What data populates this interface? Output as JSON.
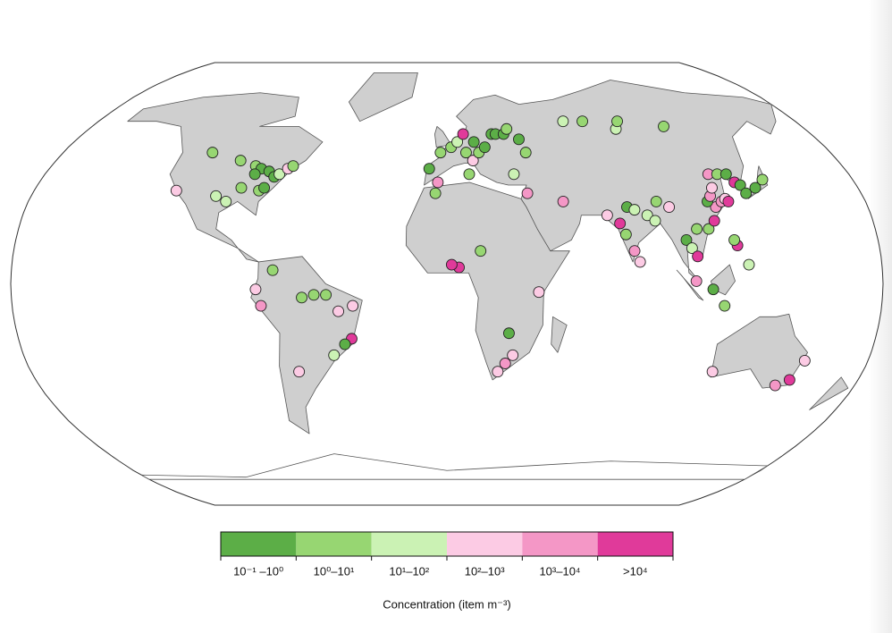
{
  "chart_data": {
    "type": "map",
    "legend": {
      "title": "Concentration (item m⁻³)",
      "bins": [
        {
          "label": "10⁻¹ –10⁰",
          "color": "#5cae47"
        },
        {
          "label": "10⁰–10¹",
          "color": "#97d672"
        },
        {
          "label": "10¹–10²",
          "color": "#cbf2b4"
        },
        {
          "label": "10²–10³",
          "color": "#fccbe4"
        },
        {
          "label": "10³–10⁴",
          "color": "#f497c6"
        },
        {
          "label": ">10⁴",
          "color": "#e03a9a"
        }
      ]
    },
    "points": [
      {
        "lon": -95,
        "lat": 45,
        "class": 1
      },
      {
        "lon": -87,
        "lat": 43,
        "class": 1
      },
      {
        "lon": -84,
        "lat": 42,
        "class": 0
      },
      {
        "lon": -80,
        "lat": 41,
        "class": 0
      },
      {
        "lon": -77,
        "lat": 39,
        "class": 0
      },
      {
        "lon": -75,
        "lat": 40,
        "class": 2
      },
      {
        "lon": -72,
        "lat": 42,
        "class": 3
      },
      {
        "lon": -70,
        "lat": 43,
        "class": 1
      },
      {
        "lon": -90,
        "lat": 35,
        "class": 1
      },
      {
        "lon": -95,
        "lat": 30,
        "class": 2
      },
      {
        "lon": -100,
        "lat": 32,
        "class": 2
      },
      {
        "lon": -82,
        "lat": 34,
        "class": 1
      },
      {
        "lon": -118,
        "lat": 34,
        "class": 3
      },
      {
        "lon": -110,
        "lat": 48,
        "class": 1
      },
      {
        "lon": -86,
        "lat": 40,
        "class": 0
      },
      {
        "lon": -80,
        "lat": 35,
        "class": 0
      },
      {
        "lon": -79,
        "lat": -2,
        "class": 3
      },
      {
        "lon": -77,
        "lat": -8,
        "class": 4
      },
      {
        "lon": -60,
        "lat": -5,
        "class": 1
      },
      {
        "lon": -55,
        "lat": -4,
        "class": 1
      },
      {
        "lon": -50,
        "lat": -4,
        "class": 1
      },
      {
        "lon": -45,
        "lat": -10,
        "class": 3
      },
      {
        "lon": -39,
        "lat": -8,
        "class": 3
      },
      {
        "lon": -40,
        "lat": -20,
        "class": 5
      },
      {
        "lon": -43,
        "lat": -22,
        "class": 0
      },
      {
        "lon": -48,
        "lat": -26,
        "class": 2
      },
      {
        "lon": -64,
        "lat": -32,
        "class": 3
      },
      {
        "lon": -72,
        "lat": 5,
        "class": 1
      },
      {
        "lon": -8,
        "lat": 42,
        "class": 0
      },
      {
        "lon": -3,
        "lat": 48,
        "class": 1
      },
      {
        "lon": 2,
        "lat": 50,
        "class": 1
      },
      {
        "lon": 5,
        "lat": 52,
        "class": 2
      },
      {
        "lon": 9,
        "lat": 48,
        "class": 1
      },
      {
        "lon": 13,
        "lat": 52,
        "class": 0
      },
      {
        "lon": 12,
        "lat": 45,
        "class": 3
      },
      {
        "lon": 15,
        "lat": 48,
        "class": 1
      },
      {
        "lon": 18,
        "lat": 50,
        "class": 0
      },
      {
        "lon": 22,
        "lat": 55,
        "class": 0
      },
      {
        "lon": 24,
        "lat": 55,
        "class": 0
      },
      {
        "lon": 28,
        "lat": 55,
        "class": 0
      },
      {
        "lon": 30,
        "lat": 57,
        "class": 1
      },
      {
        "lon": 35,
        "lat": 53,
        "class": 0
      },
      {
        "lon": 37,
        "lat": 48,
        "class": 1
      },
      {
        "lon": -4,
        "lat": 37,
        "class": 4
      },
      {
        "lon": 10,
        "lat": 40,
        "class": 1
      },
      {
        "lon": -5,
        "lat": 33,
        "class": 1
      },
      {
        "lon": 30,
        "lat": 40,
        "class": 2
      },
      {
        "lon": 35,
        "lat": 33,
        "class": 4
      },
      {
        "lon": 8,
        "lat": 55,
        "class": 5
      },
      {
        "lon": 60,
        "lat": 60,
        "class": 2
      },
      {
        "lon": 70,
        "lat": 60,
        "class": 1
      },
      {
        "lon": 85,
        "lat": 57,
        "class": 2
      },
      {
        "lon": 88,
        "lat": 60,
        "class": 1
      },
      {
        "lon": 110,
        "lat": 58,
        "class": 1
      },
      {
        "lon": 5,
        "lat": 6,
        "class": 5
      },
      {
        "lon": 2,
        "lat": 7,
        "class": 5
      },
      {
        "lon": 14,
        "lat": 12,
        "class": 1
      },
      {
        "lon": 38,
        "lat": -3,
        "class": 3
      },
      {
        "lon": 26,
        "lat": -18,
        "class": 0
      },
      {
        "lon": 28,
        "lat": -26,
        "class": 3
      },
      {
        "lon": 25,
        "lat": -29,
        "class": 4
      },
      {
        "lon": 22,
        "lat": -32,
        "class": 3
      },
      {
        "lon": 50,
        "lat": 30,
        "class": 4
      },
      {
        "lon": 68,
        "lat": 25,
        "class": 3
      },
      {
        "lon": 73,
        "lat": 22,
        "class": 5
      },
      {
        "lon": 75,
        "lat": 18,
        "class": 1
      },
      {
        "lon": 78,
        "lat": 12,
        "class": 4
      },
      {
        "lon": 80,
        "lat": 8,
        "class": 3
      },
      {
        "lon": 77,
        "lat": 28,
        "class": 0
      },
      {
        "lon": 80,
        "lat": 27,
        "class": 2
      },
      {
        "lon": 85,
        "lat": 25,
        "class": 2
      },
      {
        "lon": 88,
        "lat": 23,
        "class": 2
      },
      {
        "lon": 90,
        "lat": 30,
        "class": 1
      },
      {
        "lon": 100,
        "lat": 16,
        "class": 0
      },
      {
        "lon": 102,
        "lat": 13,
        "class": 2
      },
      {
        "lon": 104,
        "lat": 10,
        "class": 5
      },
      {
        "lon": 105,
        "lat": 20,
        "class": 1
      },
      {
        "lon": 110,
        "lat": 20,
        "class": 1
      },
      {
        "lon": 113,
        "lat": 23,
        "class": 5
      },
      {
        "lon": 115,
        "lat": 28,
        "class": 4
      },
      {
        "lon": 118,
        "lat": 30,
        "class": 4
      },
      {
        "lon": 120,
        "lat": 31,
        "class": 3
      },
      {
        "lon": 121,
        "lat": 30,
        "class": 5
      },
      {
        "lon": 112,
        "lat": 30,
        "class": 0
      },
      {
        "lon": 114,
        "lat": 32,
        "class": 4
      },
      {
        "lon": 116,
        "lat": 35,
        "class": 3
      },
      {
        "lon": 117,
        "lat": 40,
        "class": 4
      },
      {
        "lon": 121,
        "lat": 40,
        "class": 1
      },
      {
        "lon": 125,
        "lat": 40,
        "class": 0
      },
      {
        "lon": 127,
        "lat": 37,
        "class": 5
      },
      {
        "lon": 129,
        "lat": 36,
        "class": 0
      },
      {
        "lon": 130,
        "lat": 33,
        "class": 0
      },
      {
        "lon": 135,
        "lat": 35,
        "class": 0
      },
      {
        "lon": 140,
        "lat": 38,
        "class": 1
      },
      {
        "lon": 103,
        "lat": 1,
        "class": 4
      },
      {
        "lon": 110,
        "lat": -2,
        "class": 0
      },
      {
        "lon": 115,
        "lat": -8,
        "class": 1
      },
      {
        "lon": 121,
        "lat": 14,
        "class": 5
      },
      {
        "lon": 120,
        "lat": 16,
        "class": 1
      },
      {
        "lon": 125,
        "lat": 7,
        "class": 2
      },
      {
        "lon": 95,
        "lat": 28,
        "class": 3
      },
      {
        "lon": 145,
        "lat": -37,
        "class": 4
      },
      {
        "lon": 150,
        "lat": -35,
        "class": 5
      },
      {
        "lon": 153,
        "lat": -28,
        "class": 3
      },
      {
        "lon": 115,
        "lat": -32,
        "class": 3
      }
    ]
  }
}
